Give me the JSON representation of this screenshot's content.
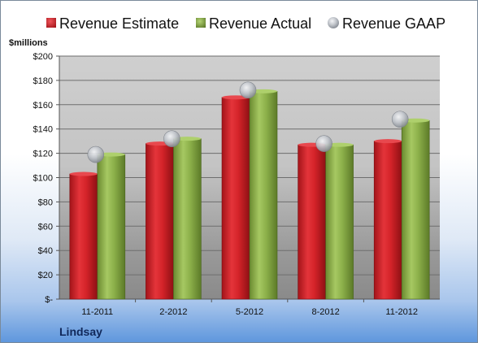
{
  "chart_data": {
    "type": "bar",
    "y_unit": "$millions",
    "company": "Lindsay",
    "categories": [
      "11-2011",
      "2-2012",
      "5-2012",
      "8-2012",
      "11-2012"
    ],
    "series": [
      {
        "name": "Revenue Estimate",
        "kind": "bar",
        "color": "#d2232a",
        "values": [
          103,
          128,
          166,
          127,
          130
        ]
      },
      {
        "name": "Revenue Actual",
        "kind": "bar",
        "color": "#8cb04a",
        "values": [
          119,
          132,
          171,
          127,
          147
        ]
      },
      {
        "name": "Revenue GAAP",
        "kind": "point",
        "color": "#b8bcc4",
        "values": [
          119,
          132,
          172,
          128,
          148
        ]
      }
    ],
    "ylim": [
      0,
      200
    ],
    "y_ticks": [
      {
        "value": 0,
        "label": "$-"
      },
      {
        "value": 20,
        "label": "$20"
      },
      {
        "value": 40,
        "label": "$40"
      },
      {
        "value": 60,
        "label": "$60"
      },
      {
        "value": 80,
        "label": "$80"
      },
      {
        "value": 100,
        "label": "$100"
      },
      {
        "value": 120,
        "label": "$120"
      },
      {
        "value": 140,
        "label": "$140"
      },
      {
        "value": 160,
        "label": "$160"
      },
      {
        "value": 180,
        "label": "$180"
      },
      {
        "value": 200,
        "label": "$200"
      }
    ],
    "grid": true,
    "legend_position": "top"
  }
}
